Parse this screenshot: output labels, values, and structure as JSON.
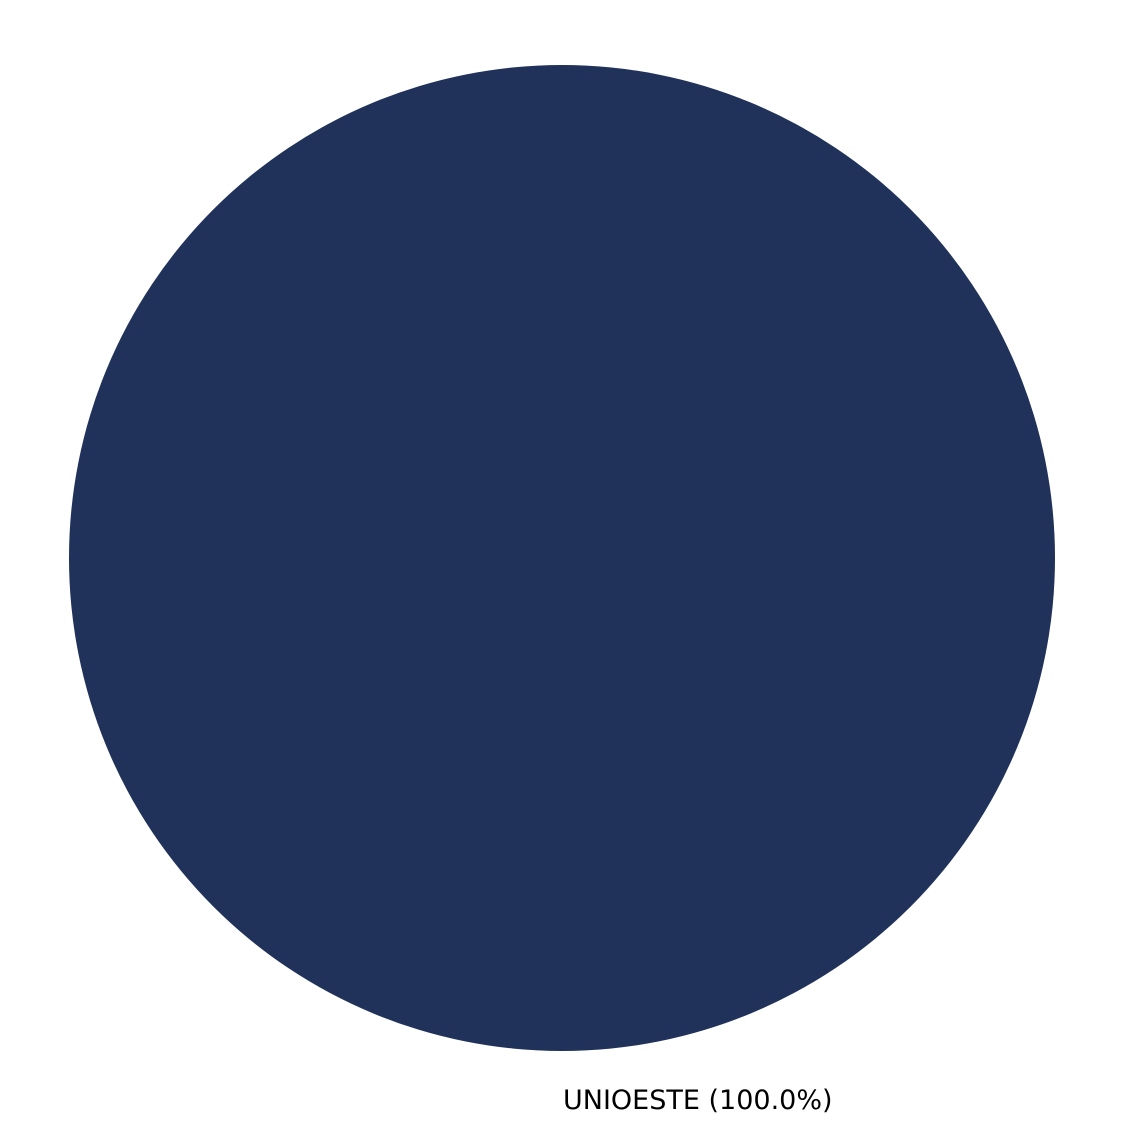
{
  "chart_data": {
    "type": "pie",
    "title": "",
    "slices": [
      {
        "label": "UNIOESTE",
        "value": 100.0,
        "percent_label": "UNIOESTE (100.0%)",
        "color": "#20325a"
      }
    ],
    "legend": "none"
  }
}
